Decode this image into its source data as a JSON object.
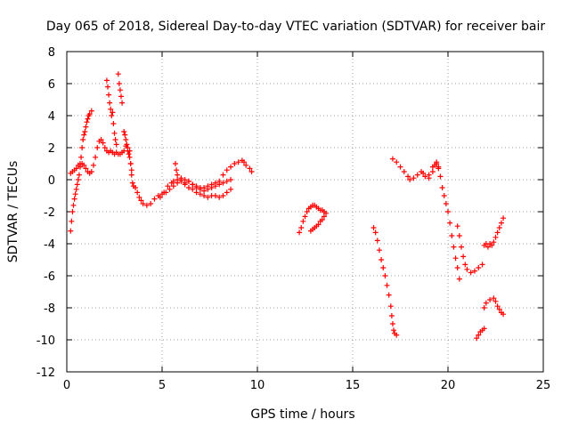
{
  "chart_data": {
    "type": "scatter",
    "title": "Day 065 of 2018, Sidereal Day-to-day VTEC variation (SDTVAR) for receiver bair",
    "xlabel": "GPS time / hours",
    "ylabel": "SDTVAR / TECUs",
    "xlim": [
      0,
      25
    ],
    "ylim": [
      -12,
      8
    ],
    "x_ticks": [
      0,
      5,
      10,
      15,
      20,
      25
    ],
    "y_ticks": [
      -12,
      -10,
      -8,
      -6,
      -4,
      -2,
      0,
      2,
      4,
      6,
      8
    ],
    "grid": true,
    "marker": "plus",
    "color": "#ff0000",
    "segments": [
      [
        [
          0.2,
          -3.2
        ],
        [
          0.25,
          -2.6
        ],
        [
          0.3,
          -2.0
        ],
        [
          0.35,
          -1.6
        ],
        [
          0.4,
          -1.2
        ],
        [
          0.45,
          -0.9
        ],
        [
          0.5,
          -0.6
        ],
        [
          0.55,
          -0.3
        ],
        [
          0.6,
          0.0
        ],
        [
          0.65,
          0.3
        ],
        [
          0.7,
          0.8
        ],
        [
          0.75,
          1.4
        ],
        [
          0.8,
          2.0
        ],
        [
          0.85,
          2.5
        ],
        [
          0.9,
          2.8
        ],
        [
          0.95,
          3.0
        ],
        [
          1.0,
          3.3
        ],
        [
          1.05,
          3.6
        ],
        [
          1.1,
          3.8
        ],
        [
          1.15,
          4.0
        ],
        [
          1.2,
          4.1
        ],
        [
          1.3,
          4.3
        ]
      ],
      [
        [
          0.2,
          0.4
        ],
        [
          0.3,
          0.5
        ],
        [
          0.4,
          0.6
        ],
        [
          0.5,
          0.7
        ],
        [
          0.6,
          0.9
        ],
        [
          0.7,
          1.0
        ],
        [
          0.8,
          1.0
        ],
        [
          0.9,
          0.9
        ],
        [
          1.0,
          0.7
        ],
        [
          1.1,
          0.5
        ],
        [
          1.2,
          0.4
        ],
        [
          1.3,
          0.5
        ],
        [
          1.4,
          0.9
        ],
        [
          1.5,
          1.4
        ],
        [
          1.6,
          2.0
        ],
        [
          1.7,
          2.4
        ],
        [
          1.8,
          2.5
        ],
        [
          1.9,
          2.3
        ],
        [
          2.0,
          2.0
        ],
        [
          2.1,
          1.8
        ],
        [
          2.2,
          1.7
        ],
        [
          2.3,
          1.8
        ],
        [
          2.4,
          1.7
        ],
        [
          2.5,
          1.6
        ],
        [
          2.6,
          1.7
        ],
        [
          2.7,
          1.6
        ],
        [
          2.8,
          1.6
        ],
        [
          2.9,
          1.7
        ],
        [
          3.0,
          1.8
        ],
        [
          3.1,
          2.1
        ],
        [
          3.2,
          2.0
        ],
        [
          3.3,
          1.8
        ],
        [
          3.35,
          1.0
        ],
        [
          3.4,
          0.3
        ],
        [
          3.45,
          -0.2
        ],
        [
          3.5,
          -0.4
        ],
        [
          3.6,
          -0.5
        ],
        [
          3.7,
          -0.8
        ],
        [
          3.8,
          -1.1
        ],
        [
          3.9,
          -1.3
        ],
        [
          4.0,
          -1.5
        ],
        [
          4.2,
          -1.6
        ],
        [
          4.4,
          -1.5
        ],
        [
          4.6,
          -1.2
        ],
        [
          4.8,
          -1.0
        ],
        [
          5.0,
          -0.9
        ],
        [
          5.2,
          -0.8
        ],
        [
          5.4,
          -0.6
        ],
        [
          5.6,
          -0.4
        ],
        [
          5.8,
          -0.2
        ],
        [
          6.0,
          -0.1
        ],
        [
          6.2,
          -0.3
        ],
        [
          6.4,
          -0.5
        ],
        [
          6.6,
          -0.6
        ],
        [
          6.8,
          -0.8
        ],
        [
          7.0,
          -0.9
        ],
        [
          7.2,
          -1.0
        ],
        [
          7.4,
          -1.1
        ],
        [
          7.6,
          -1.0
        ],
        [
          7.8,
          -1.0
        ],
        [
          8.0,
          -1.1
        ],
        [
          8.2,
          -1.0
        ],
        [
          8.4,
          -0.8
        ],
        [
          8.6,
          -0.6
        ]
      ],
      [
        [
          2.1,
          6.2
        ],
        [
          2.15,
          5.8
        ],
        [
          2.2,
          5.3
        ],
        [
          2.25,
          4.8
        ],
        [
          2.3,
          4.4
        ],
        [
          2.35,
          4.0
        ],
        [
          2.4,
          4.2
        ],
        [
          2.45,
          3.5
        ],
        [
          2.5,
          2.9
        ],
        [
          2.55,
          2.5
        ],
        [
          2.6,
          2.2
        ],
        [
          2.7,
          6.6
        ],
        [
          2.75,
          6.0
        ],
        [
          2.8,
          5.6
        ],
        [
          2.85,
          5.2
        ],
        [
          2.9,
          4.8
        ],
        [
          3.0,
          3.0
        ],
        [
          3.05,
          2.8
        ],
        [
          3.1,
          2.5
        ],
        [
          3.15,
          2.2
        ],
        [
          3.2,
          1.8
        ],
        [
          3.25,
          1.6
        ],
        [
          3.3,
          1.4
        ],
        [
          3.35,
          1.0
        ],
        [
          3.4,
          0.6
        ]
      ],
      [
        [
          4.9,
          -1.1
        ],
        [
          5.1,
          -0.8
        ],
        [
          5.3,
          -0.4
        ],
        [
          5.5,
          -0.2
        ],
        [
          5.7,
          1.0
        ],
        [
          5.75,
          0.6
        ],
        [
          5.8,
          0.3
        ],
        [
          6.0,
          0.0
        ],
        [
          6.2,
          -0.2
        ],
        [
          6.4,
          -0.1
        ],
        [
          6.6,
          -0.3
        ],
        [
          6.8,
          -0.4
        ],
        [
          7.0,
          -0.5
        ],
        [
          7.2,
          -0.5
        ],
        [
          7.4,
          -0.4
        ],
        [
          7.6,
          -0.3
        ],
        [
          7.8,
          -0.2
        ],
        [
          8.0,
          -0.1
        ],
        [
          8.2,
          0.3
        ],
        [
          8.4,
          0.6
        ],
        [
          8.6,
          0.8
        ],
        [
          8.8,
          1.0
        ],
        [
          9.0,
          1.1
        ],
        [
          9.2,
          1.2
        ],
        [
          9.3,
          1.1
        ],
        [
          9.4,
          0.9
        ],
        [
          9.6,
          0.7
        ],
        [
          9.7,
          0.5
        ]
      ],
      [
        [
          5.6,
          -0.1
        ],
        [
          5.8,
          0.0
        ],
        [
          6.0,
          0.1
        ],
        [
          6.2,
          0.0
        ],
        [
          6.4,
          -0.1
        ],
        [
          6.6,
          -0.3
        ],
        [
          6.8,
          -0.5
        ],
        [
          7.0,
          -0.6
        ],
        [
          7.2,
          -0.7
        ],
        [
          7.4,
          -0.6
        ],
        [
          7.6,
          -0.5
        ],
        [
          7.8,
          -0.4
        ],
        [
          8.0,
          -0.3
        ],
        [
          8.2,
          -0.2
        ],
        [
          8.4,
          -0.1
        ],
        [
          8.6,
          0.0
        ]
      ],
      [
        [
          12.2,
          -3.3
        ],
        [
          12.3,
          -3.0
        ],
        [
          12.4,
          -2.6
        ],
        [
          12.5,
          -2.3
        ],
        [
          12.6,
          -2.0
        ],
        [
          12.7,
          -1.8
        ],
        [
          12.8,
          -1.7
        ],
        [
          12.9,
          -1.6
        ],
        [
          13.0,
          -1.6
        ],
        [
          13.1,
          -1.7
        ],
        [
          13.2,
          -1.8
        ],
        [
          13.3,
          -1.9
        ],
        [
          13.4,
          -1.9
        ],
        [
          13.5,
          -2.0
        ],
        [
          13.6,
          -2.1
        ]
      ],
      [
        [
          12.8,
          -3.2
        ],
        [
          12.9,
          -3.1
        ],
        [
          13.0,
          -3.0
        ],
        [
          13.1,
          -2.9
        ],
        [
          13.2,
          -2.8
        ],
        [
          13.3,
          -2.6
        ],
        [
          13.4,
          -2.5
        ],
        [
          13.5,
          -2.3
        ]
      ],
      [
        [
          16.1,
          -3.0
        ],
        [
          16.2,
          -3.3
        ],
        [
          16.3,
          -3.8
        ],
        [
          16.4,
          -4.4
        ],
        [
          16.5,
          -5.0
        ],
        [
          16.6,
          -5.5
        ],
        [
          16.7,
          -6.0
        ],
        [
          16.8,
          -6.6
        ],
        [
          16.9,
          -7.2
        ],
        [
          17.0,
          -7.9
        ],
        [
          17.05,
          -8.5
        ],
        [
          17.1,
          -9.0
        ],
        [
          17.15,
          -9.4
        ],
        [
          17.2,
          -9.6
        ],
        [
          17.3,
          -9.7
        ]
      ],
      [
        [
          17.1,
          1.3
        ],
        [
          17.3,
          1.1
        ],
        [
          17.5,
          0.8
        ],
        [
          17.7,
          0.5
        ],
        [
          17.9,
          0.2
        ],
        [
          18.0,
          0.0
        ],
        [
          18.2,
          0.1
        ],
        [
          18.4,
          0.3
        ],
        [
          18.6,
          0.5
        ],
        [
          18.7,
          0.4
        ],
        [
          18.8,
          0.2
        ],
        [
          19.0,
          0.3
        ],
        [
          19.2,
          0.8
        ],
        [
          19.4,
          1.0
        ],
        [
          19.5,
          0.7
        ],
        [
          19.6,
          0.2
        ],
        [
          19.7,
          -0.5
        ],
        [
          19.8,
          -1.0
        ],
        [
          19.9,
          -1.5
        ],
        [
          20.0,
          -2.0
        ],
        [
          20.1,
          -2.7
        ],
        [
          20.2,
          -3.5
        ],
        [
          20.3,
          -4.2
        ],
        [
          20.4,
          -4.9
        ],
        [
          20.5,
          -5.5
        ],
        [
          20.6,
          -6.2
        ]
      ],
      [
        [
          19.0,
          0.1
        ],
        [
          19.2,
          0.5
        ],
        [
          19.3,
          0.9
        ],
        [
          19.4,
          1.1
        ],
        [
          19.5,
          0.8
        ]
      ],
      [
        [
          20.5,
          -2.9
        ],
        [
          20.6,
          -3.5
        ],
        [
          20.7,
          -4.2
        ],
        [
          20.8,
          -4.8
        ],
        [
          20.9,
          -5.3
        ],
        [
          21.0,
          -5.6
        ],
        [
          21.2,
          -5.8
        ],
        [
          21.4,
          -5.7
        ],
        [
          21.6,
          -5.5
        ],
        [
          21.8,
          -5.3
        ]
      ],
      [
        [
          21.5,
          -9.9
        ],
        [
          21.6,
          -9.7
        ],
        [
          21.7,
          -9.5
        ],
        [
          21.8,
          -9.4
        ],
        [
          21.9,
          -9.3
        ]
      ],
      [
        [
          21.9,
          -8.0
        ],
        [
          22.0,
          -7.7
        ],
        [
          22.2,
          -7.5
        ],
        [
          22.4,
          -7.4
        ],
        [
          22.5,
          -7.6
        ],
        [
          22.6,
          -7.9
        ],
        [
          22.7,
          -8.1
        ],
        [
          22.8,
          -8.3
        ],
        [
          22.9,
          -8.4
        ]
      ],
      [
        [
          21.9,
          -4.1
        ],
        [
          22.0,
          -4.0
        ],
        [
          22.1,
          -4.2
        ],
        [
          22.2,
          -4.0
        ],
        [
          22.3,
          -4.1
        ],
        [
          22.4,
          -3.9
        ],
        [
          22.5,
          -3.6
        ],
        [
          22.6,
          -3.3
        ],
        [
          22.7,
          -3.0
        ],
        [
          22.8,
          -2.7
        ],
        [
          22.9,
          -2.4
        ]
      ]
    ]
  }
}
